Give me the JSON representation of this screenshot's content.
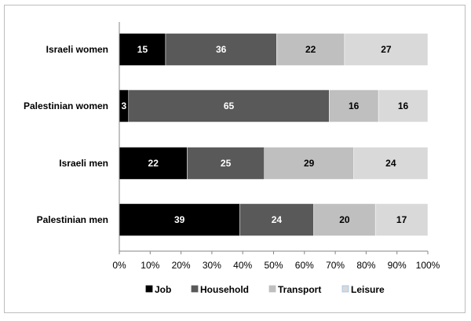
{
  "chart_data": {
    "type": "bar",
    "orientation": "horizontal",
    "stacked": "percent",
    "categories": [
      "Israeli women",
      "Palestinian women",
      "Israeli men",
      "Palestinian men"
    ],
    "series": [
      {
        "name": "Job",
        "color": "#000000",
        "label_color": "#ffffff",
        "values": [
          15,
          3,
          22,
          39
        ]
      },
      {
        "name": "Household",
        "color": "#595959",
        "label_color": "#ffffff",
        "values": [
          36,
          65,
          25,
          24
        ]
      },
      {
        "name": "Transport",
        "color": "#bfbfbf",
        "label_color": "#000000",
        "values": [
          22,
          16,
          29,
          20
        ]
      },
      {
        "name": "Leisure",
        "color": "#d9d9d9",
        "label_color": "#000000",
        "values": [
          27,
          16,
          24,
          17
        ]
      }
    ],
    "xticks": [
      "0%",
      "10%",
      "20%",
      "30%",
      "40%",
      "50%",
      "60%",
      "70%",
      "80%",
      "90%",
      "100%"
    ],
    "xlim": [
      0,
      100
    ],
    "grid": false,
    "legend": "bottom"
  }
}
